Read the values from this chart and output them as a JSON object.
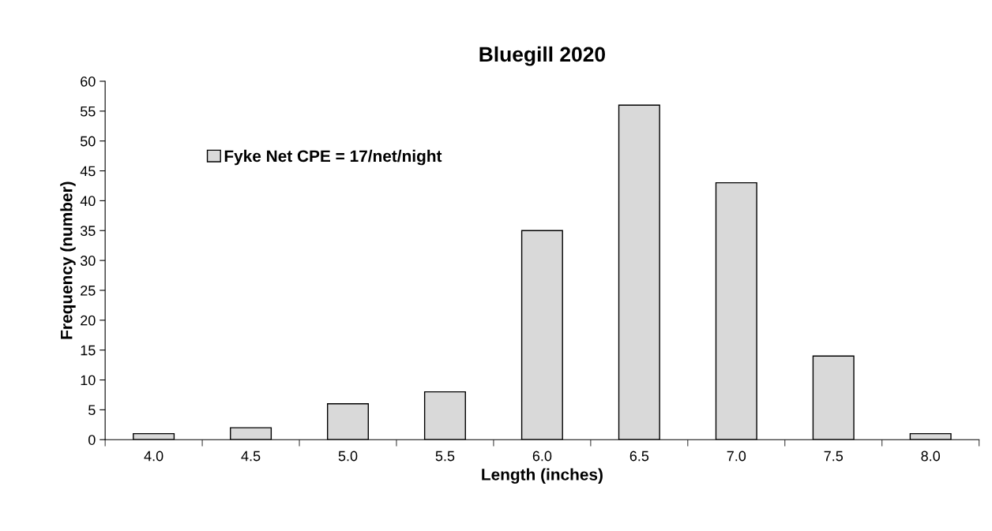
{
  "chart_data": {
    "type": "bar",
    "title": "Bluegill 2020",
    "xlabel": "Length (inches)",
    "ylabel": "Frequency (number)",
    "categories": [
      "4.0",
      "4.5",
      "5.0",
      "5.5",
      "6.0",
      "6.5",
      "7.0",
      "7.5",
      "8.0"
    ],
    "series": [
      {
        "name": "Fyke Net CPE = 17/net/night",
        "color": "#d9d9d9",
        "values": [
          1,
          2,
          6,
          8,
          35,
          56,
          43,
          14,
          1
        ]
      }
    ],
    "ylim": [
      0,
      60
    ],
    "yticks": [
      0,
      5,
      10,
      15,
      20,
      25,
      30,
      35,
      40,
      45,
      50,
      55,
      60
    ],
    "grid": false,
    "legend": "top left"
  }
}
